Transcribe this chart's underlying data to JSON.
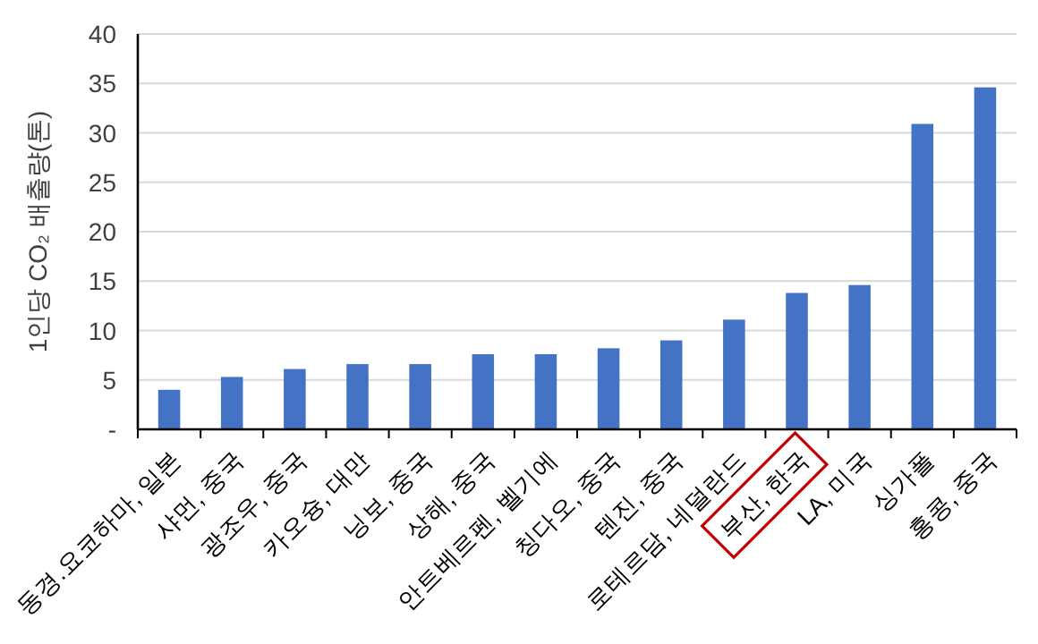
{
  "chart_data": {
    "type": "bar",
    "ylabel": "1인당 CO₂ 배출량(톤)",
    "categories": [
      "동경.요코하마, 일본",
      "샤먼, 중국",
      "광조우, 중국",
      "카오슝, 대만",
      "닝보, 중국",
      "상해, 중국",
      "안트베르펜, 벨기에",
      "칭다오, 중국",
      "텐진, 중국",
      "로테르담, 네덜란드",
      "부산, 한국",
      "LA, 미국",
      "싱가폴",
      "홍콩, 중국"
    ],
    "values": [
      4.0,
      5.3,
      6.1,
      6.6,
      6.6,
      7.6,
      7.6,
      8.2,
      9.0,
      11.1,
      13.8,
      14.6,
      30.9,
      34.6
    ],
    "color": "#4472c4",
    "ylim": [
      0,
      40
    ],
    "yticks": [
      {
        "value": 0,
        "label": "-"
      },
      5,
      10,
      15,
      20,
      25,
      30,
      35,
      40
    ],
    "grid": "y"
  }
}
